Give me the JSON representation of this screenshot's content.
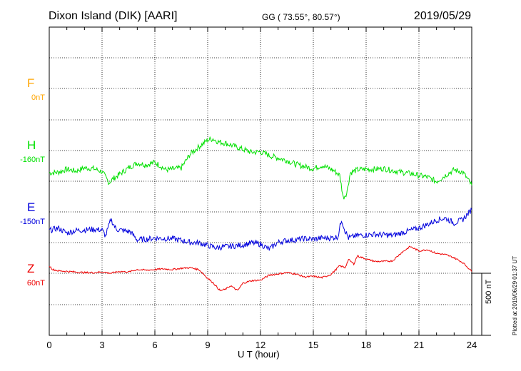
{
  "header": {
    "station": "Dixon Island (DIK)  [AARI]",
    "coords": "GG ( 73.55°,  80.57°)",
    "date": "2019/05/29"
  },
  "plotted_note": "Plotted at 2019/06/29 01:37 UT",
  "scale_note": "500 nT",
  "colors": {
    "F": "#ffa500",
    "H": "#00e000",
    "E": "#0000dd",
    "Z": "#ee0000"
  },
  "chart_data": {
    "type": "line",
    "xlabel": "U T (hour)",
    "xlim": [
      0,
      24
    ],
    "xticks": [
      "0",
      "3",
      "6",
      "9",
      "12",
      "15",
      "18",
      "21",
      "24"
    ],
    "scale_bar_nT": 500,
    "channels": [
      {
        "name": "F",
        "baseline": "0nT",
        "color": "#ffa500"
      },
      {
        "name": "H",
        "baseline": "-160nT",
        "color": "#00e000"
      },
      {
        "name": "E",
        "baseline": "-150nT",
        "color": "#0000dd"
      },
      {
        "name": "Z",
        "baseline": "60nT",
        "color": "#ee0000"
      }
    ],
    "series": [
      {
        "name": "H",
        "x": [
          0,
          0.5,
          1,
          1.5,
          2,
          2.5,
          3,
          3.2,
          3.4,
          3.6,
          4,
          4.5,
          5,
          5.5,
          6,
          6.3,
          6.6,
          7,
          7.5,
          8,
          8.5,
          9,
          9.3,
          9.6,
          10,
          10.5,
          11,
          11.5,
          12,
          12.5,
          13,
          13.5,
          14,
          14.5,
          15,
          15.5,
          16,
          16.2,
          16.5,
          16.7,
          16.9,
          17.1,
          17.5,
          18,
          18.5,
          19,
          19.5,
          20,
          20.5,
          21,
          21.5,
          22,
          22.5,
          23,
          23.5,
          24
        ],
        "values": [
          -180,
          -175,
          -150,
          -165,
          -140,
          -145,
          -170,
          -215,
          -260,
          -230,
          -190,
          -140,
          -100,
          -115,
          -95,
          -120,
          -155,
          -150,
          -140,
          -30,
          30,
          85,
          95,
          70,
          60,
          35,
          10,
          -15,
          -10,
          -40,
          -60,
          -80,
          -110,
          -130,
          -145,
          -120,
          -150,
          -165,
          -200,
          -380,
          -340,
          -180,
          -155,
          -150,
          -150,
          -145,
          -160,
          -175,
          -185,
          -200,
          -215,
          -250,
          -200,
          -155,
          -175,
          -280
        ]
      },
      {
        "name": "E",
        "x": [
          0,
          0.5,
          1,
          1.5,
          2,
          2.5,
          3,
          3.2,
          3.5,
          3.8,
          4.2,
          4.6,
          5,
          5.5,
          6,
          6.5,
          7,
          7.5,
          8,
          8.5,
          9,
          9.5,
          10,
          10.5,
          11,
          11.5,
          12,
          12.5,
          13,
          13.5,
          14,
          14.5,
          15,
          15.5,
          16,
          16.4,
          16.6,
          16.8,
          17,
          17.5,
          18,
          18.5,
          19,
          19.5,
          20,
          20.5,
          21,
          21.5,
          22,
          22.5,
          23,
          23.5,
          24
        ],
        "values": [
          -150,
          -130,
          -170,
          -150,
          -145,
          -140,
          -145,
          -195,
          -60,
          -140,
          -150,
          -160,
          -225,
          -220,
          -210,
          -215,
          -215,
          -230,
          -245,
          -250,
          -270,
          -290,
          -280,
          -275,
          -265,
          -250,
          -260,
          -300,
          -245,
          -230,
          -225,
          -215,
          -220,
          -210,
          -210,
          -200,
          -60,
          -150,
          -210,
          -190,
          -185,
          -180,
          -185,
          -190,
          -170,
          -150,
          -130,
          -100,
          -65,
          -50,
          -90,
          -60,
          20
        ]
      },
      {
        "name": "Z",
        "x": [
          0,
          0.2,
          0.5,
          1,
          1.5,
          2,
          2.5,
          3,
          3.5,
          4,
          4.5,
          5,
          5.5,
          6,
          6.5,
          7,
          7.5,
          8,
          8.5,
          9,
          9.3,
          9.7,
          10,
          10.3,
          10.7,
          11,
          11.5,
          12,
          12.5,
          13,
          13.5,
          14,
          14.5,
          15,
          15.5,
          16,
          16.5,
          16.8,
          17,
          17.3,
          17.5,
          18,
          18.5,
          19,
          19.5,
          20,
          20.5,
          21,
          21.5,
          22,
          22.5,
          23,
          23.5,
          24
        ],
        "values": [
          60,
          30,
          20,
          15,
          10,
          5,
          5,
          10,
          0,
          15,
          10,
          30,
          25,
          30,
          35,
          30,
          40,
          45,
          30,
          -40,
          -75,
          -140,
          -130,
          -100,
          -140,
          -80,
          -60,
          -55,
          -15,
          -5,
          5,
          -5,
          -30,
          -25,
          -35,
          -10,
          60,
          45,
          110,
          75,
          140,
          115,
          95,
          95,
          100,
          165,
          215,
          180,
          190,
          160,
          150,
          125,
          85,
          15
        ]
      }
    ]
  }
}
